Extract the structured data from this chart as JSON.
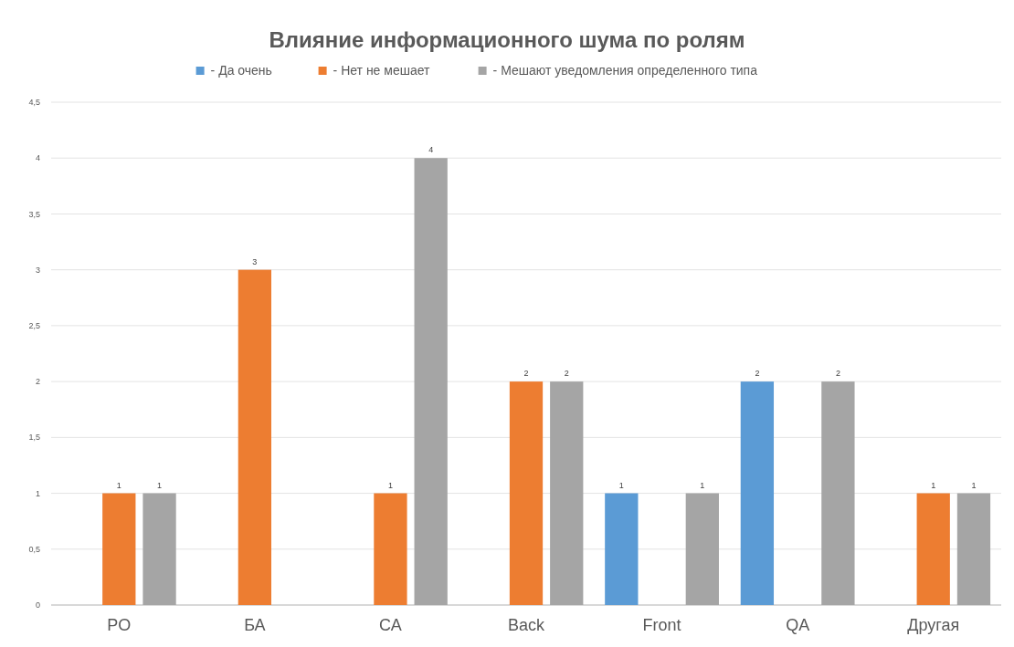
{
  "chart_data": {
    "type": "bar",
    "title": "Влияние информационного шума по ролям",
    "categories": [
      "PO",
      "БА",
      "СА",
      "Back",
      "Front",
      "QA",
      "Другая"
    ],
    "series": [
      {
        "name": "- Да очень",
        "color": "#5b9bd5",
        "values": [
          null,
          null,
          null,
          null,
          1,
          2,
          null
        ]
      },
      {
        "name": "- Нет не мешает",
        "color": "#ed7d31",
        "values": [
          1,
          3,
          1,
          2,
          null,
          null,
          1
        ]
      },
      {
        "name": "- Мешают уведомления определенного типа",
        "color": "#a5a5a5",
        "values": [
          1,
          null,
          4,
          2,
          1,
          2,
          1
        ]
      }
    ],
    "ylim": [
      0,
      4.5
    ],
    "yticks": [
      0,
      {
        "value": 0.5,
        "label": "0,5"
      },
      1,
      {
        "value": 1.5,
        "label": "1,5"
      },
      2,
      {
        "value": 2.5,
        "label": "2,5"
      },
      3,
      {
        "value": 3.5,
        "label": "3,5"
      },
      4,
      {
        "value": 4.5,
        "label": "4,5"
      }
    ],
    "grid": "y",
    "legend": "top",
    "data_labels": true
  }
}
